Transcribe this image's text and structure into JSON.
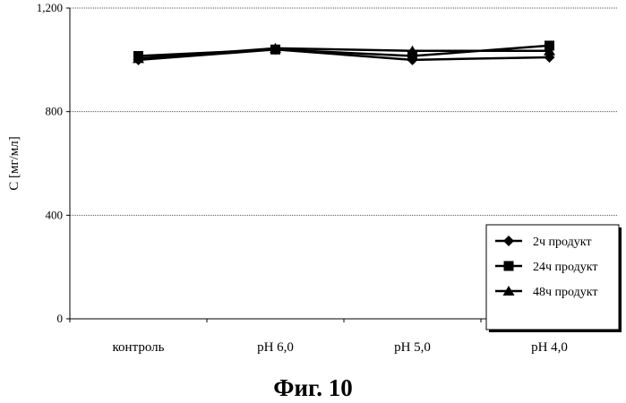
{
  "caption": "Фиг. 10",
  "chart_data": {
    "type": "line",
    "categories": [
      "контроль",
      "pH 6,0",
      "pH 5,0",
      "pH 4,0"
    ],
    "ylabel": "C [мг/мл]",
    "ylim": [
      0,
      1200
    ],
    "yticks": [
      0,
      400,
      800,
      1200
    ],
    "ytick_labels": [
      "0",
      "400",
      "800",
      "1,200"
    ],
    "grid": true,
    "legend_position": "bottom-right",
    "series": [
      {
        "name": "2ч продукт",
        "marker": "diamond",
        "values": [
          1000,
          1040,
          1000,
          1010
        ]
      },
      {
        "name": "24ч продукт",
        "marker": "square",
        "values": [
          1015,
          1040,
          1015,
          1055
        ]
      },
      {
        "name": "48ч продукт",
        "marker": "triangle",
        "values": [
          1005,
          1045,
          1035,
          1035
        ]
      }
    ],
    "colors": {
      "lines": "#000000",
      "grid": "#555555"
    }
  }
}
